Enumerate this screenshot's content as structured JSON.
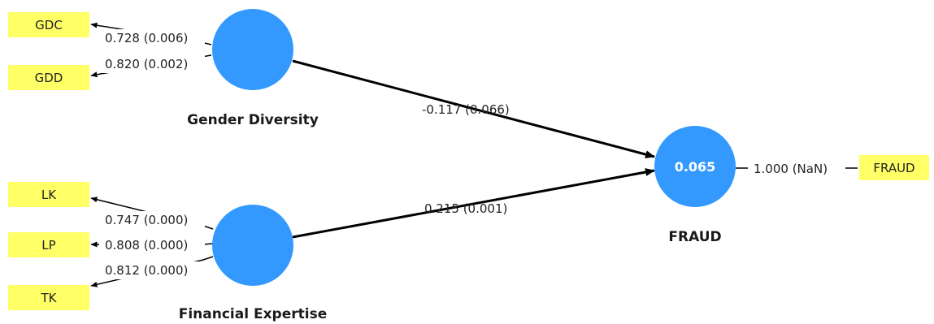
{
  "colors": {
    "construct": "#3399ff",
    "indicator": "#ffff66",
    "line": "#000000"
  },
  "constructs": {
    "gender_diversity": {
      "name": "Gender Diversity",
      "value": ""
    },
    "financial_expertise": {
      "name": "Financial Expertise",
      "value": ""
    },
    "fraud": {
      "name": "FRAUD",
      "value": "0.065"
    }
  },
  "indicators": {
    "gdc": "GDC",
    "gdd": "GDD",
    "lk": "LK",
    "lp": "LP",
    "tk": "TK",
    "fraud": "FRAUD"
  },
  "loadings": {
    "gdc": "0.728 (0.006)",
    "gdd": "0.820 (0.002)",
    "lk": "0.747 (0.000)",
    "lp": "0.808 (0.000)",
    "tk": "0.812 (0.000)",
    "fraud": "1.000 (NaN)"
  },
  "paths": {
    "gender_diversity_to_fraud": "-0.117 (0.066)",
    "financial_expertise_to_fraud": "0.215 (0.001)"
  }
}
